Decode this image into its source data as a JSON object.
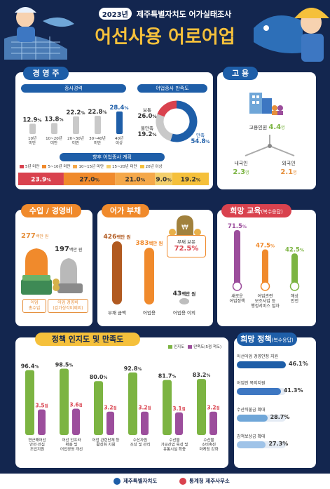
{
  "header": {
    "year": "2023년",
    "title_top": "제주특별자치도 어가실태조사",
    "title_main": "어선사용 어로어업"
  },
  "sections": {
    "operator": "경 영 주",
    "employment": "고 용",
    "income": "수입 / 경영비",
    "debt": "어가 부채",
    "education": "희망 교육",
    "education_sub": "(복수응답)",
    "awareness": "정책 인지도 및 만족도",
    "policy": "희망 정책",
    "policy_sub": "(복수응답)"
  },
  "operator": {
    "career_title": "종사경력",
    "satisfaction_title": "어업종사 만족도",
    "plan_title": "향후 어업종사 계획"
  },
  "employment": {
    "total_label": "고용인원",
    "total_value": "4.4",
    "domestic_label": "내국인",
    "domestic_value": "2.3",
    "foreign_label": "외국인",
    "foreign_value": "2.1",
    "unit": "명"
  },
  "income": {
    "income_value": "277",
    "expense_value": "197",
    "unit": "백만 원",
    "income_label": "어업\n총수입",
    "expense_label": "어업 경영비\n(감가상각비제외)"
  },
  "debt": {
    "badge_label": "부채 보유",
    "badge_value": "72.5%",
    "unit": "백만 원"
  },
  "footer": {
    "left": "제주특별자치도",
    "right": "통계청 제주사무소"
  },
  "colors": {
    "navy": "#13264f",
    "blue": "#1e5ea8",
    "red": "#d9424e",
    "orange": "#f08a2c",
    "yellow": "#f5c03b",
    "green": "#7cb442",
    "purple": "#9c4e9c",
    "brown": "#b15a20"
  },
  "chart_data": [
    {
      "id": "career",
      "type": "bar",
      "title": "종사경력",
      "categories": [
        "10년\n미만",
        "10~20년\n미만",
        "20~30년\n미만",
        "30~40년\n미만",
        "40년\n이상"
      ],
      "values": [
        12.9,
        13.8,
        22.2,
        22.8,
        28.4
      ],
      "unit": "%"
    },
    {
      "id": "satisfaction",
      "type": "pie",
      "title": "어업종사 만족도",
      "categories": [
        "만족",
        "보통",
        "불만족"
      ],
      "values": [
        54.8,
        26.0,
        19.2
      ],
      "unit": "%"
    },
    {
      "id": "plan",
      "type": "bar",
      "title": "향후 어업종사 계획",
      "categories": [
        "5년 미만",
        "5~10년 미만",
        "10~15년 미만",
        "15~20년 미만",
        "20년 이상"
      ],
      "values": [
        23.9,
        27.0,
        21.0,
        9.0,
        19.2
      ],
      "unit": "%"
    },
    {
      "id": "debt",
      "type": "bar",
      "categories": [
        "부채 금액",
        "어업용",
        "어업용 이외"
      ],
      "values": [
        426,
        383,
        43
      ],
      "unit": "백만 원"
    },
    {
      "id": "education",
      "type": "bar",
      "title": "희망 교육",
      "categories": [
        "새로운\n어업정책",
        "어업관련\n보조사업 등\n행정서비스 절차",
        "해상\n안전"
      ],
      "values": [
        71.5,
        47.5,
        42.5
      ],
      "unit": "%"
    },
    {
      "id": "awareness",
      "type": "bar",
      "title": "정책 인지도 및 만족도",
      "categories": [
        "연근해어선\n안전·안심\n조업지원",
        "어선 인프라\n확충 및\n어업경영 개선",
        "어업 관련단체 등\n활성화 지원",
        "수산자원\n조성 및 관리",
        "수산물\n가공산업 육성 및\n유통시설 확충",
        "수산물\n소비촉진\n마케팅 강화"
      ],
      "series": [
        {
          "name": "인지도",
          "values": [
            96.4,
            98.5,
            80.0,
            92.8,
            81.7,
            83.2
          ],
          "unit": "%"
        },
        {
          "name": "만족도(5점 척도)",
          "values": [
            3.5,
            3.6,
            3.2,
            3.2,
            3.1,
            3.2
          ],
          "unit": "점"
        }
      ]
    },
    {
      "id": "policy",
      "type": "bar",
      "title": "희망 정책",
      "categories": [
        "어선어업 경영안정 지원",
        "어업인 복지지원",
        "수산직불금 확대",
        "감척보상금 확대"
      ],
      "values": [
        46.1,
        41.3,
        28.7,
        27.3
      ],
      "unit": "%"
    }
  ]
}
